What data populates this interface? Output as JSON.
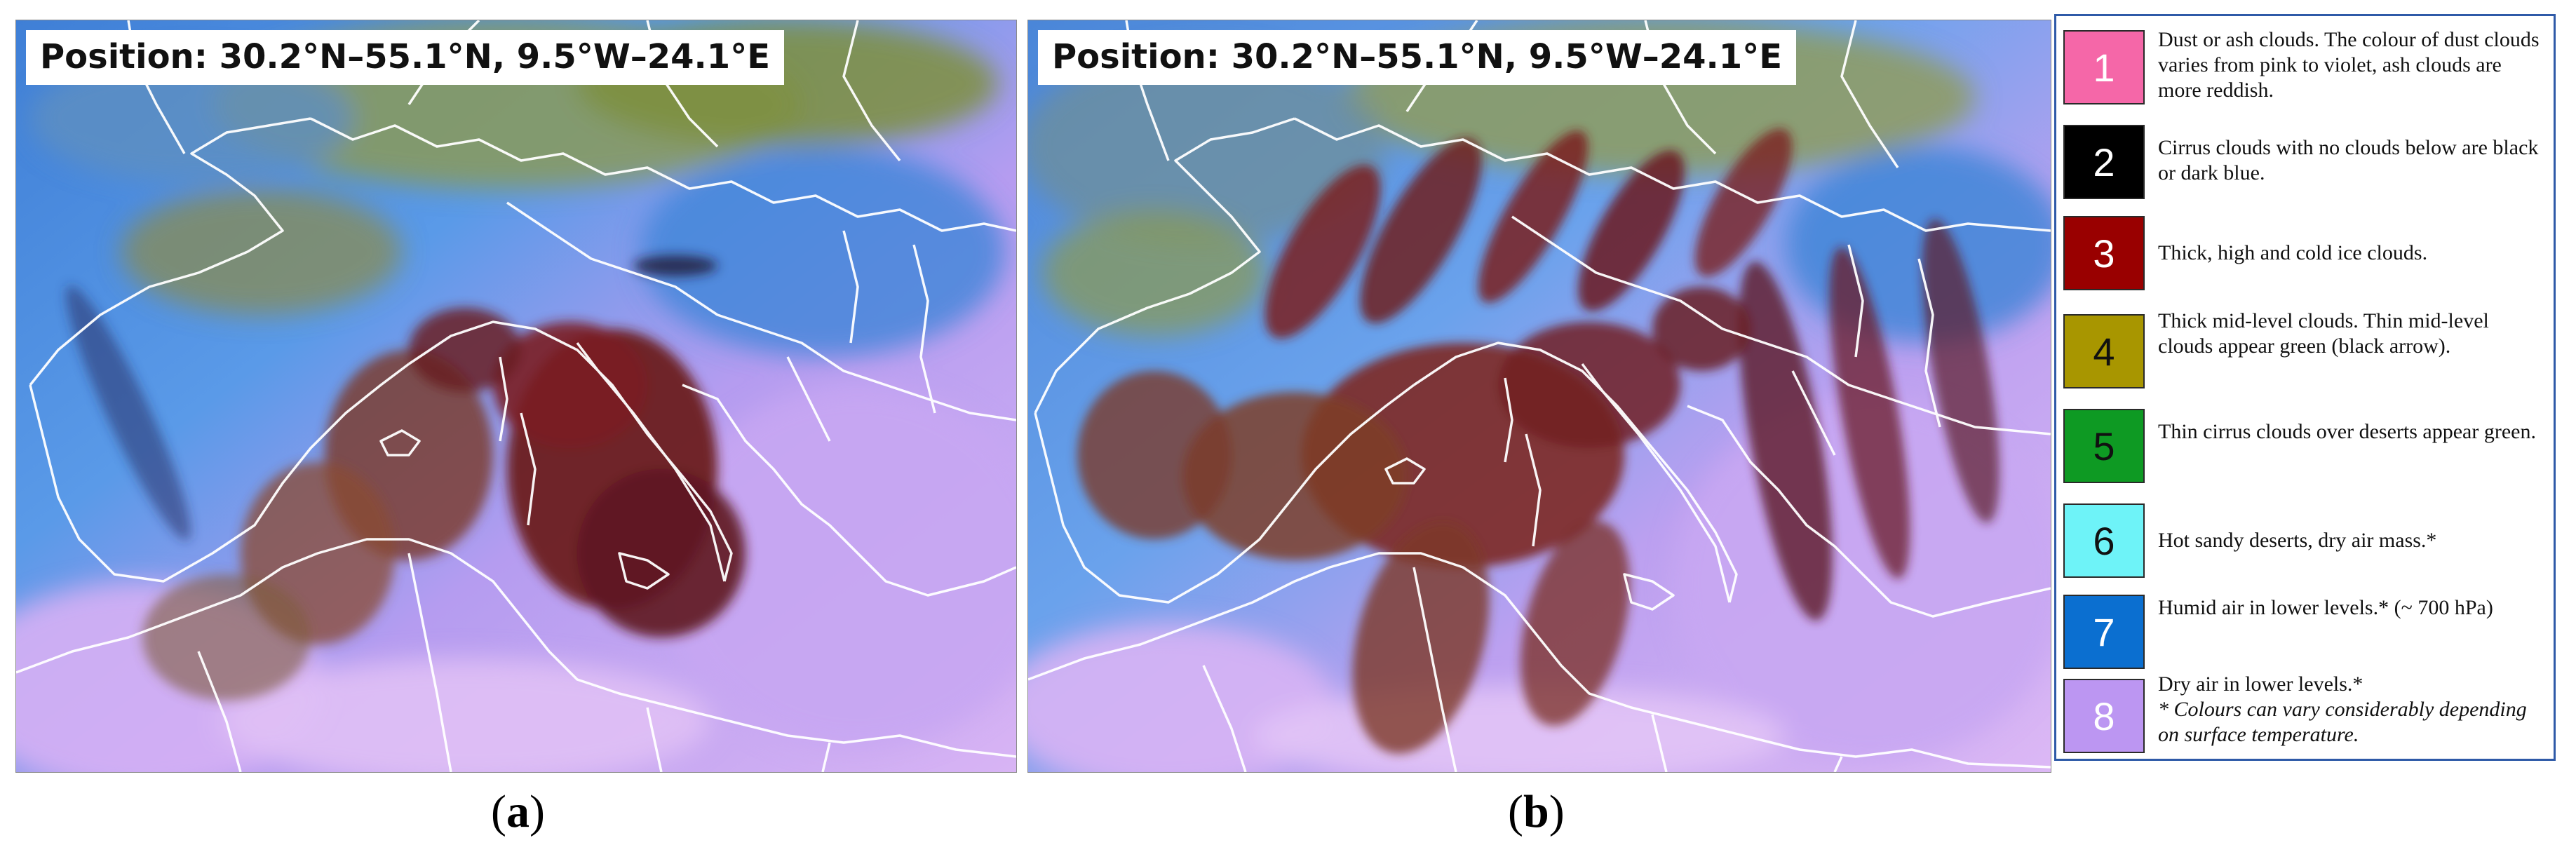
{
  "panels": [
    {
      "id": "a",
      "position_label": "Position: 30.2°N–55.1°N, 9.5°W–24.1°E",
      "caption": "a"
    },
    {
      "id": "b",
      "position_label": "Position: 30.2°N–55.1°N, 9.5°W–24.1°E",
      "caption": "b"
    }
  ],
  "legend": [
    {
      "number": "1",
      "color": "#f567a8",
      "number_color": "#ffffff",
      "text": "Dust or ash clouds. The colour of dust clouds varies from pink to violet, ash clouds are more reddish."
    },
    {
      "number": "2",
      "color": "#000000",
      "number_color": "#ffffff",
      "text": "Cirrus clouds with no clouds below are black or dark blue."
    },
    {
      "number": "3",
      "color": "#990000",
      "number_color": "#ffffff",
      "text": "Thick, high and cold ice clouds."
    },
    {
      "number": "4",
      "color": "#a89600",
      "number_color": "#111111",
      "text": "Thick mid-level clouds. Thin mid-level clouds appear green (black arrow)."
    },
    {
      "number": "5",
      "color": "#0e9a23",
      "number_color": "#111111",
      "text": "Thin cirrus clouds over deserts appear green."
    },
    {
      "number": "6",
      "color": "#6ef3f8",
      "number_color": "#111111",
      "text": "Hot sandy deserts, dry air mass.*"
    },
    {
      "number": "7",
      "color": "#0b6fd0",
      "number_color": "#ffffff",
      "text": "Humid air in lower levels.* (~ 700 hPa)"
    },
    {
      "number": "8",
      "color": "#bc96f2",
      "number_color": "#ffffff",
      "text": "Dry air in lower levels.*",
      "note": "* Colours can vary considerably depending on surface temperature."
    }
  ]
}
